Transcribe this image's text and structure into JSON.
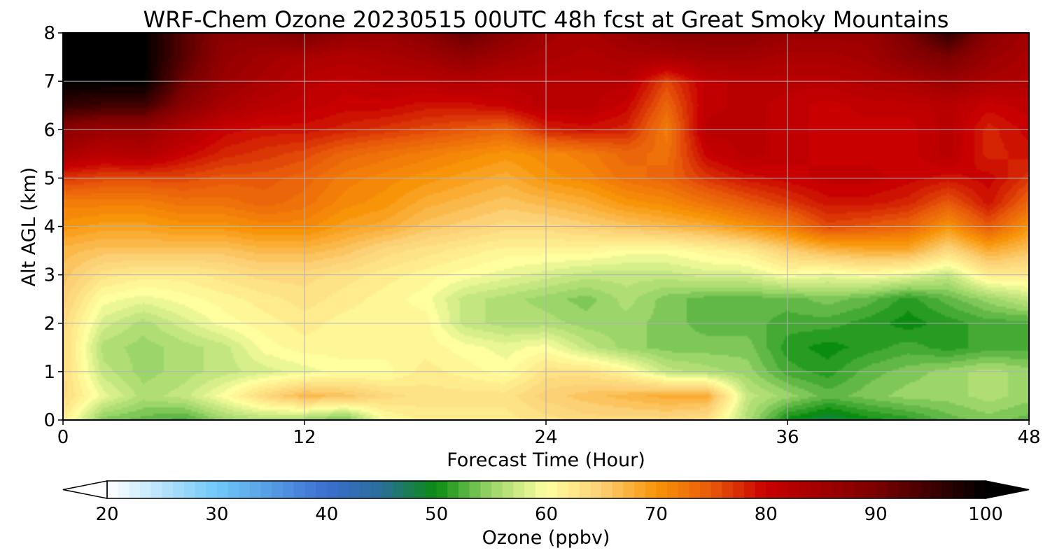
{
  "chart_data": {
    "type": "heatmap",
    "title": "WRF-Chem Ozone  20230515 00UTC 48h fcst at Great Smoky Mountains",
    "xlabel": "Forecast Time (Hour)",
    "ylabel": "Alt AGL (km)",
    "xlim": [
      0,
      48
    ],
    "ylim": [
      0,
      8
    ],
    "xticks": [
      "0",
      "12",
      "24",
      "36",
      "48"
    ],
    "yticks": [
      "0",
      "1",
      "2",
      "3",
      "4",
      "5",
      "6",
      "7",
      "8"
    ],
    "grid": true,
    "x_hours": [
      0,
      2,
      4,
      6,
      8,
      10,
      12,
      14,
      16,
      18,
      20,
      22,
      24,
      26,
      28,
      30,
      32,
      34,
      36,
      38,
      40,
      42,
      44,
      46,
      48
    ],
    "z_km": [
      0,
      0.5,
      1,
      1.5,
      2,
      2.5,
      3,
      3.5,
      4,
      4.5,
      5,
      5.5,
      6,
      6.5,
      7,
      7.5,
      8
    ],
    "ozone_ppbv": [
      [
        62,
        54,
        53,
        52,
        55,
        56,
        55,
        53,
        60,
        62,
        62,
        62,
        63,
        64,
        64,
        64,
        63,
        56,
        50,
        48,
        50,
        51,
        53,
        54,
        53
      ],
      [
        64,
        59,
        56,
        57,
        60,
        64,
        67,
        66,
        64,
        63,
        63,
        63,
        65,
        66,
        67,
        68,
        68,
        57,
        55,
        53,
        54,
        55,
        55,
        56,
        55
      ],
      [
        64,
        57,
        55,
        56,
        57,
        58,
        59,
        60,
        60,
        62,
        61,
        60,
        63,
        63,
        61,
        57,
        56,
        55,
        52,
        51,
        53,
        54,
        55,
        56,
        55
      ],
      [
        64,
        56,
        55,
        56,
        57,
        60,
        61,
        61,
        61,
        61,
        60,
        59,
        60,
        57,
        55,
        54,
        54,
        54,
        51,
        50,
        51,
        52,
        51,
        52,
        52
      ],
      [
        64,
        58,
        56,
        58,
        60,
        61,
        62,
        61,
        61,
        61,
        57,
        56,
        56,
        55,
        55,
        54,
        53,
        53,
        52,
        52,
        51,
        50,
        51,
        52,
        52
      ],
      [
        65,
        60,
        59,
        60,
        61,
        62,
        63,
        62,
        61,
        60,
        57,
        56,
        55,
        54,
        56,
        54,
        53,
        53,
        53,
        54,
        53,
        51,
        53,
        55,
        57
      ],
      [
        66,
        63,
        62,
        62,
        63,
        64,
        64,
        63,
        62,
        61,
        60,
        59,
        58,
        57,
        57,
        57,
        58,
        58,
        60,
        59,
        60,
        59,
        57,
        62,
        62
      ],
      [
        67,
        66,
        66,
        66,
        66,
        67,
        67,
        66,
        64,
        63,
        62,
        61,
        61,
        61,
        60,
        60,
        61,
        62,
        65,
        67,
        68,
        68,
        64,
        68,
        66
      ],
      [
        70,
        69,
        69,
        70,
        70,
        71,
        71,
        69,
        68,
        66,
        65,
        64,
        64,
        65,
        66,
        67,
        68,
        70,
        72,
        76,
        75,
        74,
        70,
        75,
        70
      ],
      [
        72,
        72,
        72,
        73,
        73,
        74,
        73,
        71,
        70,
        68,
        67,
        66,
        67,
        68,
        70,
        71,
        73,
        75,
        77,
        79,
        79,
        78,
        75,
        79,
        74
      ],
      [
        77,
        76,
        76,
        76,
        75,
        75,
        74,
        72,
        71,
        70,
        69,
        68,
        70,
        71,
        73,
        74,
        77,
        79,
        80,
        81,
        81,
        80,
        79,
        80,
        77
      ],
      [
        84,
        82,
        83,
        80,
        78,
        77,
        76,
        74,
        73,
        72,
        71,
        70,
        71,
        72,
        74,
        73,
        80,
        82,
        81,
        80,
        80,
        80,
        82,
        78,
        79
      ],
      [
        88,
        86,
        86,
        83,
        80,
        79,
        79,
        78,
        77,
        76,
        75,
        74,
        78,
        79,
        78,
        72,
        82,
        82,
        81,
        80,
        80,
        80,
        82,
        78,
        80
      ],
      [
        96,
        95,
        95,
        88,
        84,
        82,
        81,
        80,
        80,
        79,
        79,
        80,
        82,
        82,
        80,
        74,
        81,
        82,
        81,
        80,
        81,
        81,
        82,
        80,
        81
      ],
      [
        100,
        100,
        100,
        91,
        86,
        84,
        82,
        81,
        82,
        82,
        83,
        82,
        82,
        82,
        82,
        76,
        81,
        82,
        82,
        82,
        83,
        84,
        86,
        84,
        83
      ],
      [
        100,
        100,
        100,
        93,
        87,
        85,
        84,
        83,
        84,
        85,
        87,
        85,
        84,
        83,
        84,
        84,
        85,
        85,
        84,
        84,
        85,
        88,
        90,
        86,
        84
      ],
      [
        100,
        100,
        100,
        93,
        88,
        88,
        90,
        87,
        86,
        88,
        92,
        88,
        85,
        84,
        86,
        88,
        88,
        88,
        86,
        86,
        86,
        90,
        96,
        88,
        85
      ]
    ]
  },
  "colorbar": {
    "label": "Ozone  (ppbv)",
    "min": 20,
    "max": 100,
    "ticks": [
      "20",
      "30",
      "40",
      "50",
      "60",
      "70",
      "80",
      "90",
      "100"
    ],
    "extend": "both",
    "levels": [
      {
        "v": 20,
        "c": "#ffffff"
      },
      {
        "v": 30,
        "c": "#70c8f8"
      },
      {
        "v": 40,
        "c": "#3b6ed0"
      },
      {
        "v": 45,
        "c": "#2a6e98"
      },
      {
        "v": 50,
        "c": "#0a8c10"
      },
      {
        "v": 55,
        "c": "#9cd66a"
      },
      {
        "v": 60,
        "c": "#ffffa0"
      },
      {
        "v": 65,
        "c": "#fcd074"
      },
      {
        "v": 70,
        "c": "#f89408"
      },
      {
        "v": 75,
        "c": "#e85a0a"
      },
      {
        "v": 80,
        "c": "#c80000"
      },
      {
        "v": 90,
        "c": "#7c0000"
      },
      {
        "v": 100,
        "c": "#000000"
      }
    ]
  }
}
